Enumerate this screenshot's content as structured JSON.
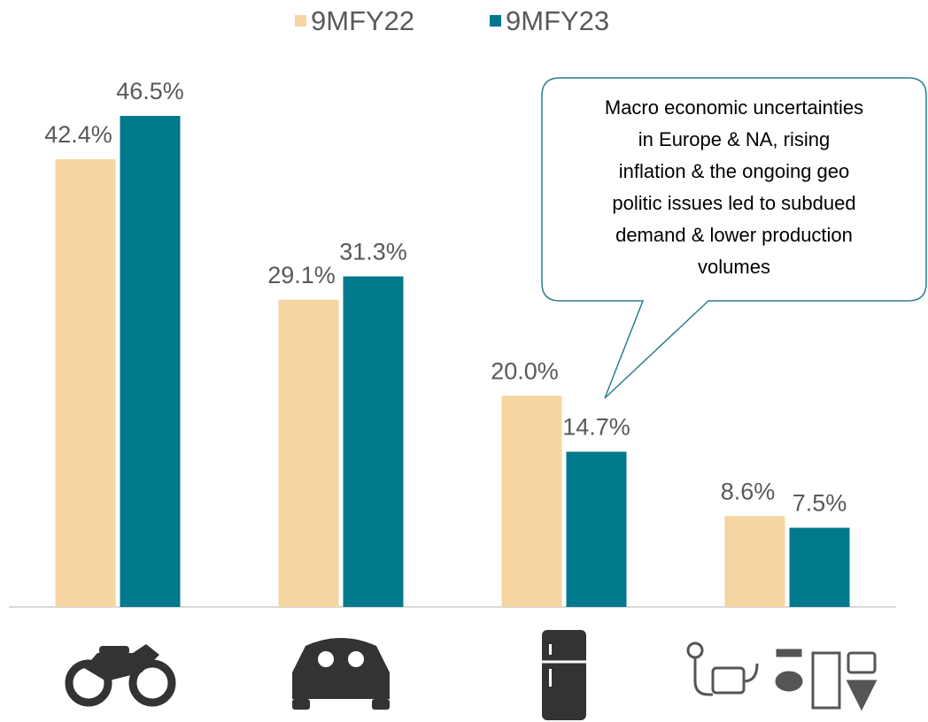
{
  "chart_data": {
    "type": "bar",
    "categories": [
      null,
      null,
      null,
      null
    ],
    "series": [
      {
        "name": "9MFY22",
        "color": "#f5d5a0",
        "values": [
          42.4,
          29.1,
          20.0,
          8.6
        ],
        "value_labels": [
          "42.4%",
          "29.1%",
          "20.0%",
          "8.6%"
        ]
      },
      {
        "name": "9MFY23",
        "color": "#00798c",
        "values": [
          46.5,
          31.3,
          14.7,
          7.5
        ],
        "value_labels": [
          "46.5%",
          "31.3%",
          "14.7%",
          "7.5%"
        ]
      }
    ],
    "legend": "top",
    "annotation": [
      "Macro economic uncertainties",
      "in Europe & NA, rising",
      "inflation & the ongoing geo",
      "politic issues led to subdued",
      "demand & lower production",
      "volumes"
    ]
  }
}
